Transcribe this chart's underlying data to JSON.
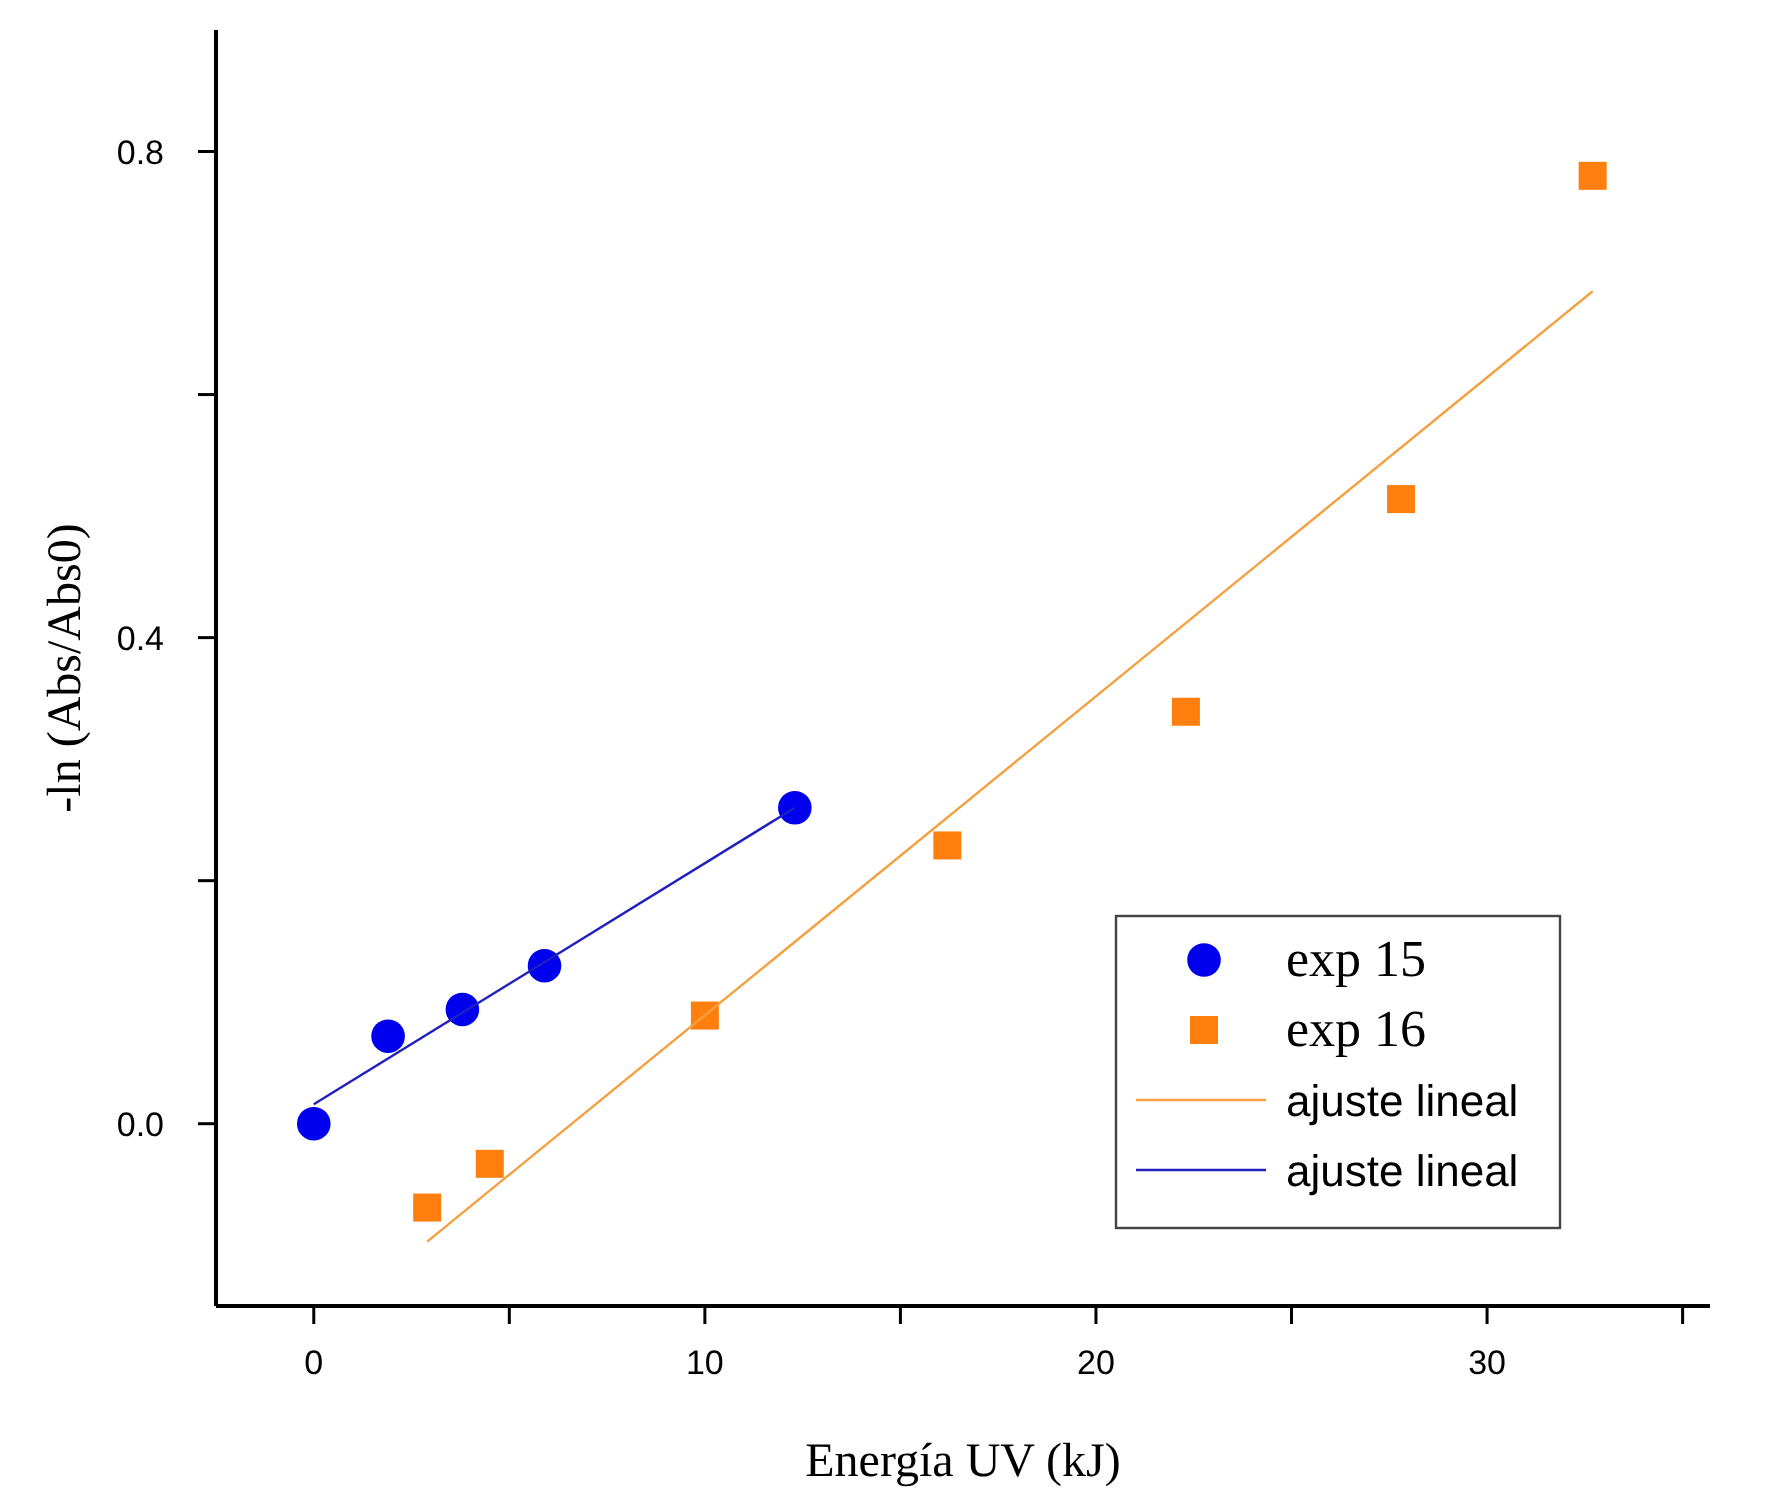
{
  "chart_data": {
    "type": "scatter",
    "xlabel": "Energía UV (kJ)",
    "ylabel": "-ln (Abs/Abs0)",
    "xlim": [
      -2.5,
      35.7
    ],
    "ylim": [
      -0.15,
      0.9
    ],
    "xticks": [
      0,
      {
        "value": 5,
        "label": null
      },
      10,
      {
        "value": 15,
        "label": null
      },
      20,
      {
        "value": 25,
        "label": null
      },
      30,
      {
        "value": 35,
        "label": null
      }
    ],
    "yticks": [
      "0.0",
      {
        "value": 0.2,
        "label": null
      },
      0.4,
      {
        "value": 0.6,
        "label": null
      },
      0.8
    ],
    "legend": "bottom right",
    "grid": false,
    "series": [
      {
        "name": "exp 15",
        "marker": "circle",
        "color": "#0000ee",
        "x": [
          0,
          1.9,
          3.8,
          5.9,
          12.3
        ],
        "values": [
          0,
          0.072,
          0.094,
          0.13,
          0.26
        ]
      },
      {
        "name": "exp 16",
        "marker": "square",
        "color": "#ff7f0e",
        "x": [
          2.9,
          4.5,
          10.0,
          16.2,
          22.3,
          27.8,
          32.7
        ],
        "values": [
          -0.069,
          -0.033,
          0.089,
          0.229,
          0.339,
          0.514,
          0.78
        ]
      },
      {
        "name": "ajuste lineal",
        "type": "line",
        "marker": "none",
        "line_style": "solid",
        "color": "#f5a040",
        "x": [
          2.9,
          32.7
        ],
        "values": [
          -0.097,
          0.685
        ]
      },
      {
        "name": "ajuste lineal",
        "type": "line",
        "marker": "none",
        "line_style": "solid",
        "color": "#2020c0",
        "x": [
          0,
          12.3
        ],
        "values": [
          0.016,
          0.26
        ]
      }
    ]
  }
}
